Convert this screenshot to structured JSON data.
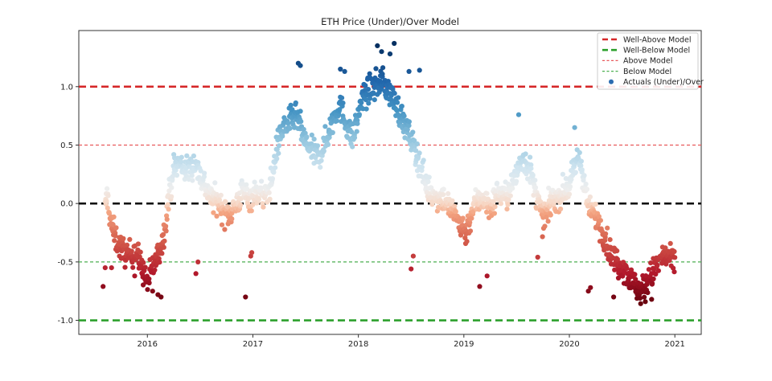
{
  "chart_data": {
    "type": "scatter",
    "title": "ETH Price (Under)/Over Model",
    "xlabel": "",
    "ylabel": "",
    "x_ticks": [
      "2016",
      "2017",
      "2018",
      "2019",
      "2020",
      "2021"
    ],
    "y_ticks": [
      "1.0",
      "0.5",
      "0.0",
      "-0.5",
      "-1.0"
    ],
    "xlim": [
      2015.35,
      2021.25
    ],
    "ylim": [
      -1.12,
      1.48
    ],
    "grid": false,
    "legend_position": "top-right",
    "colormap": "red-to-blue (RdBu), colored by value",
    "reference_lines": [
      {
        "name": "Well-Above Model",
        "y": 1.0,
        "color": "#d62728",
        "style": "dashed-thick"
      },
      {
        "name": "Well-Below Model",
        "y": -1.0,
        "color": "#2ca02c",
        "style": "dashed-thick"
      },
      {
        "name": "Above Model",
        "y": 0.5,
        "color": "#e8595b",
        "style": "dashed-thin"
      },
      {
        "name": "Below Model",
        "y": -0.5,
        "color": "#4caf50",
        "style": "dashed-thin"
      },
      {
        "name": "",
        "y": 0.0,
        "color": "#111111",
        "style": "dashed-thick"
      }
    ],
    "legend": [
      {
        "label": "Well-Above Model",
        "marker": "thick-dash",
        "color": "#d62728"
      },
      {
        "label": "Well-Below Model",
        "marker": "thick-dash",
        "color": "#2ca02c"
      },
      {
        "label": "Above Model",
        "marker": "thin-dash",
        "color": "#e8595b"
      },
      {
        "label": "Below Model",
        "marker": "thin-dash",
        "color": "#4caf50"
      },
      {
        "label": "Actuals (Under)/Over",
        "marker": "dot",
        "color": "#2b6cb0"
      }
    ],
    "series": [
      {
        "name": "Actuals (Under)/Over",
        "trend": [
          [
            2015.6,
            -0.05
          ],
          [
            2015.62,
            0.08
          ],
          [
            2015.65,
            -0.15
          ],
          [
            2015.7,
            -0.3
          ],
          [
            2015.75,
            -0.38
          ],
          [
            2015.82,
            -0.45
          ],
          [
            2015.88,
            -0.4
          ],
          [
            2015.95,
            -0.55
          ],
          [
            2016.0,
            -0.68
          ],
          [
            2016.05,
            -0.55
          ],
          [
            2016.1,
            -0.45
          ],
          [
            2016.15,
            -0.3
          ],
          [
            2016.2,
            0.05
          ],
          [
            2016.25,
            0.3
          ],
          [
            2016.3,
            0.35
          ],
          [
            2016.38,
            0.28
          ],
          [
            2016.45,
            0.35
          ],
          [
            2016.52,
            0.2
          ],
          [
            2016.6,
            0.05
          ],
          [
            2016.68,
            0.0
          ],
          [
            2016.75,
            -0.1
          ],
          [
            2016.82,
            -0.05
          ],
          [
            2016.9,
            0.1
          ],
          [
            2016.97,
            0.05
          ],
          [
            2017.05,
            0.1
          ],
          [
            2017.12,
            0.05
          ],
          [
            2017.18,
            0.2
          ],
          [
            2017.22,
            0.45
          ],
          [
            2017.28,
            0.65
          ],
          [
            2017.35,
            0.7
          ],
          [
            2017.42,
            0.75
          ],
          [
            2017.48,
            0.55
          ],
          [
            2017.55,
            0.45
          ],
          [
            2017.62,
            0.4
          ],
          [
            2017.68,
            0.5
          ],
          [
            2017.75,
            0.7
          ],
          [
            2017.82,
            0.85
          ],
          [
            2017.88,
            0.7
          ],
          [
            2017.95,
            0.55
          ],
          [
            2018.02,
            0.85
          ],
          [
            2018.08,
            0.95
          ],
          [
            2018.15,
            1.0
          ],
          [
            2018.22,
            1.05
          ],
          [
            2018.3,
            0.95
          ],
          [
            2018.38,
            0.8
          ],
          [
            2018.45,
            0.65
          ],
          [
            2018.52,
            0.5
          ],
          [
            2018.58,
            0.35
          ],
          [
            2018.65,
            0.15
          ],
          [
            2018.72,
            0.05
          ],
          [
            2018.8,
            0.05
          ],
          [
            2018.88,
            -0.05
          ],
          [
            2018.95,
            -0.15
          ],
          [
            2019.02,
            -0.25
          ],
          [
            2019.1,
            0.0
          ],
          [
            2019.18,
            0.05
          ],
          [
            2019.25,
            -0.05
          ],
          [
            2019.32,
            0.1
          ],
          [
            2019.4,
            0.05
          ],
          [
            2019.48,
            0.2
          ],
          [
            2019.55,
            0.4
          ],
          [
            2019.62,
            0.3
          ],
          [
            2019.68,
            0.1
          ],
          [
            2019.75,
            -0.15
          ],
          [
            2019.82,
            0.0
          ],
          [
            2019.88,
            0.05
          ],
          [
            2019.95,
            0.1
          ],
          [
            2020.02,
            0.2
          ],
          [
            2020.08,
            0.4
          ],
          [
            2020.12,
            0.3
          ],
          [
            2020.18,
            -0.05
          ],
          [
            2020.25,
            -0.1
          ],
          [
            2020.32,
            -0.25
          ],
          [
            2020.38,
            -0.4
          ],
          [
            2020.45,
            -0.5
          ],
          [
            2020.52,
            -0.55
          ],
          [
            2020.6,
            -0.68
          ],
          [
            2020.68,
            -0.75
          ],
          [
            2020.75,
            -0.65
          ],
          [
            2020.82,
            -0.55
          ],
          [
            2020.88,
            -0.45
          ],
          [
            2020.95,
            -0.48
          ],
          [
            2021.0,
            -0.5
          ]
        ],
        "outliers": [
          [
            2015.58,
            -0.71
          ],
          [
            2015.6,
            -0.55
          ],
          [
            2015.66,
            -0.55
          ],
          [
            2015.88,
            -0.62
          ],
          [
            2016.05,
            -0.75
          ],
          [
            2016.1,
            -0.78
          ],
          [
            2016.13,
            -0.8
          ],
          [
            2016.46,
            -0.6
          ],
          [
            2016.48,
            -0.5
          ],
          [
            2016.93,
            -0.8
          ],
          [
            2016.98,
            -0.45
          ],
          [
            2016.99,
            -0.42
          ],
          [
            2017.43,
            1.2
          ],
          [
            2017.45,
            1.18
          ],
          [
            2017.83,
            1.15
          ],
          [
            2017.87,
            1.13
          ],
          [
            2018.18,
            1.35
          ],
          [
            2018.22,
            1.3
          ],
          [
            2018.3,
            1.28
          ],
          [
            2018.34,
            1.37
          ],
          [
            2018.48,
            1.13
          ],
          [
            2018.58,
            1.14
          ],
          [
            2018.5,
            -0.56
          ],
          [
            2018.52,
            -0.45
          ],
          [
            2019.15,
            -0.71
          ],
          [
            2019.22,
            -0.62
          ],
          [
            2019.52,
            0.76
          ],
          [
            2019.7,
            -0.46
          ],
          [
            2020.05,
            0.65
          ],
          [
            2020.18,
            -0.75
          ],
          [
            2020.2,
            -0.72
          ],
          [
            2020.42,
            -0.8
          ],
          [
            2020.72,
            -0.84
          ],
          [
            2020.78,
            -0.82
          ]
        ]
      }
    ]
  }
}
